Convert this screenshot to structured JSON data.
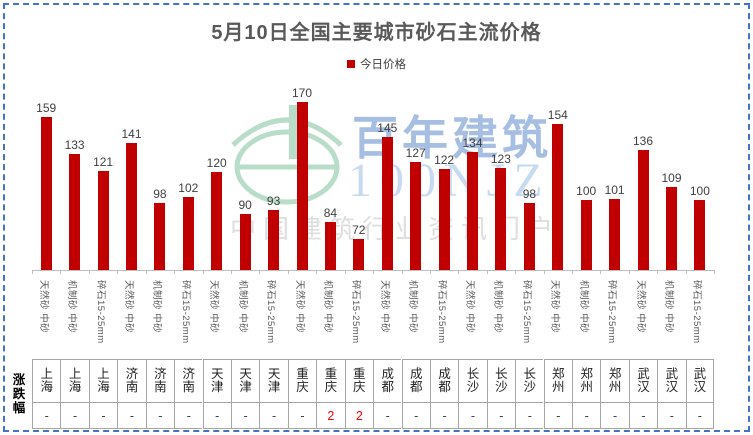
{
  "frame": {
    "border_color": "#4472C4"
  },
  "header": {
    "title": "5月10日全国主要城市砂石主流价格",
    "legend_label": "今日价格"
  },
  "chart_data": {
    "type": "bar",
    "title": "5月10日全国主要城市砂石主流价格",
    "legend": [
      "今日价格"
    ],
    "legend_position": "top-center",
    "bar_color": "#C00000",
    "grid": false,
    "ylim": [
      50,
      175
    ],
    "cities": [
      "上海",
      "上海",
      "上海",
      "济南",
      "济南",
      "济南",
      "天津",
      "天津",
      "天津",
      "重庆",
      "重庆",
      "重庆",
      "成都",
      "成都",
      "成都",
      "长沙",
      "长沙",
      "长沙",
      "郑州",
      "郑州",
      "郑州",
      "武汉",
      "武汉",
      "武汉"
    ],
    "categories": [
      "天然砂 中砂",
      "机制砂 中砂",
      "碎石15-25mm",
      "天然砂 中砂",
      "机制砂 中砂",
      "碎石15-25mm",
      "天然砂 中砂",
      "机制砂 中砂",
      "碎石15-25mm",
      "天然砂 中砂",
      "机制砂 中砂",
      "碎石15-25mm",
      "天然砂 中砂",
      "机制砂 中砂",
      "碎石15-25mm",
      "天然砂 中砂",
      "机制砂 中砂",
      "碎石15-25mm",
      "天然砂 中砂",
      "机制砂 中砂",
      "碎石15-25mm",
      "天然砂 中砂",
      "机制砂 中砂",
      "碎石15-25mm"
    ],
    "series": [
      {
        "name": "今日价格",
        "values": [
          159,
          133,
          121,
          141,
          98,
          102,
          120,
          90,
          93,
          170,
          84,
          72,
          145,
          127,
          122,
          134,
          123,
          98,
          154,
          100,
          101,
          136,
          109,
          100
        ]
      }
    ]
  },
  "table": {
    "row_header": "涨跌幅",
    "changes": [
      "-",
      "-",
      "-",
      "-",
      "-",
      "-",
      "-",
      "-",
      "-",
      "-",
      "2",
      "2",
      "-",
      "-",
      "-",
      "-",
      "-",
      "-",
      "-",
      "-",
      "-",
      "-",
      "-",
      "-"
    ],
    "change_up_color": "#FF0000"
  },
  "watermark": {
    "brand": "百年建筑",
    "code": "100NJZ",
    "tagline": "中国建筑行业资讯门户"
  }
}
